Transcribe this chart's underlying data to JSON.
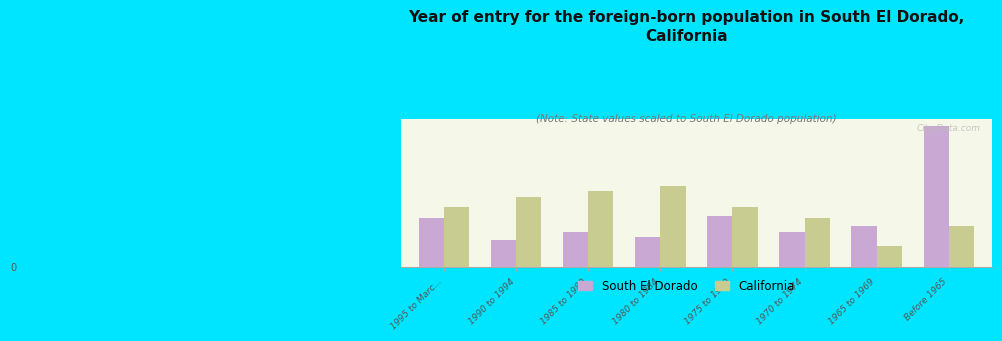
{
  "title": "Year of entry for the foreign-born population in South El Dorado,\nCalifornia",
  "subtitle": "(Note: State values scaled to South El Dorado population)",
  "categories": [
    "1995 to Marc...",
    "1990 to 1994",
    "1985 to 1989",
    "1980 to 1984",
    "1975 to 1979",
    "1970 to 1974",
    "1965 to 1969",
    "Before 1965"
  ],
  "south_el_dorado": [
    18,
    10,
    13,
    11,
    19,
    13,
    15,
    52
  ],
  "california": [
    22,
    26,
    28,
    30,
    22,
    18,
    8,
    15
  ],
  "bar_color_sed": "#c9a8d4",
  "bar_color_ca": "#c8cc90",
  "background_color": "#00e5ff",
  "plot_bg": "#f5f7e8",
  "watermark": "City-Data.com",
  "legend_sed": "South El Dorado",
  "legend_ca": "California",
  "bar_width": 0.35,
  "title_fontsize": 11,
  "subtitle_fontsize": 7.5
}
